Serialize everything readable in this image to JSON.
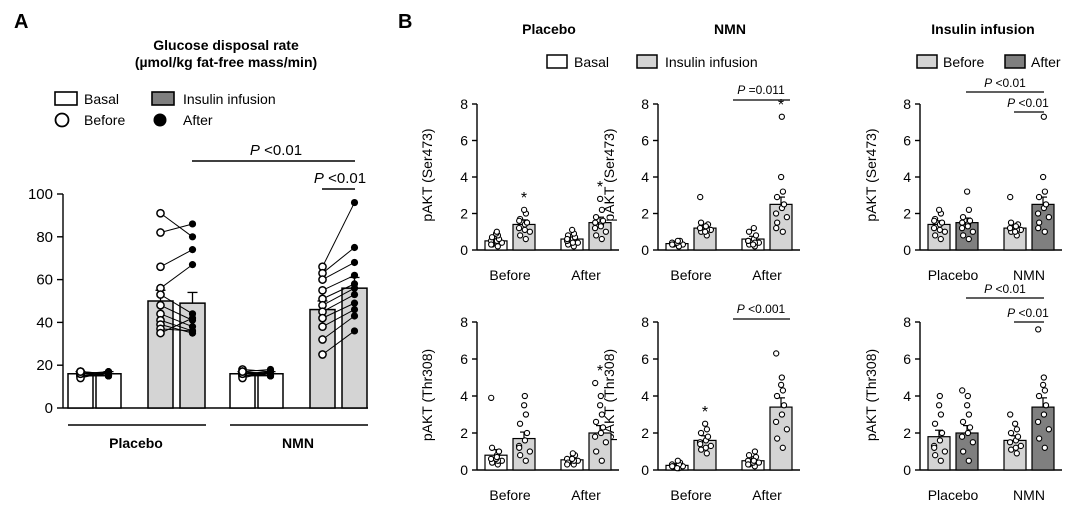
{
  "colors": {
    "white": "#ffffff",
    "light_gray": "#d4d4d4",
    "dark_gray": "#7f7f7f",
    "black": "#000000"
  },
  "chart_data": [
    {
      "id": "A",
      "panel_letter": "A",
      "type": "bar",
      "title": "Glucose disposal rate",
      "title2": "(µmol/kg fat-free mass/min)",
      "legend": {
        "basal": "Basal",
        "insulin": "Insulin infusion",
        "before": "Before",
        "after": "After"
      },
      "ylim": [
        0,
        100
      ],
      "yticks": [
        0,
        20,
        40,
        60,
        80,
        100
      ],
      "groups": [
        {
          "label": "Placebo",
          "bars": [
            {
              "condition": "Basal",
              "time": "Before",
              "mean": 16,
              "sem": 1
            },
            {
              "condition": "Basal",
              "time": "After",
              "mean": 16,
              "sem": 1
            },
            {
              "condition": "Insulin infusion",
              "time": "Before",
              "mean": 50,
              "sem": 5
            },
            {
              "condition": "Insulin infusion",
              "time": "After",
              "mean": 49,
              "sem": 5
            }
          ],
          "basal_before": [
            17,
            16,
            15,
            16,
            15,
            17,
            16,
            15,
            14,
            16,
            17
          ],
          "basal_after": [
            16,
            15,
            16,
            17,
            15,
            16,
            16,
            15,
            17,
            16,
            15
          ],
          "insulin_before": [
            91,
            82,
            66,
            56,
            53,
            48,
            44,
            41,
            39,
            37,
            35
          ],
          "insulin_after": [
            80,
            86,
            74,
            67,
            44,
            41,
            38,
            36,
            35,
            36,
            42
          ]
        },
        {
          "label": "NMN",
          "bars": [
            {
              "condition": "Basal",
              "time": "Before",
              "mean": 16,
              "sem": 1
            },
            {
              "condition": "Basal",
              "time": "After",
              "mean": 16,
              "sem": 1
            },
            {
              "condition": "Insulin infusion",
              "time": "Before",
              "mean": 46,
              "sem": 4
            },
            {
              "condition": "Insulin infusion",
              "time": "After",
              "mean": 56,
              "sem": 5
            }
          ],
          "basal_before": [
            18,
            17,
            16,
            16,
            15,
            17,
            16,
            15,
            14,
            16,
            17
          ],
          "basal_after": [
            17,
            16,
            15,
            17,
            16,
            18,
            16,
            15,
            17,
            16,
            15
          ],
          "insulin_before": [
            66,
            63,
            60,
            55,
            51,
            48,
            45,
            42,
            38,
            32,
            25
          ],
          "insulin_after": [
            96,
            75,
            68,
            62,
            58,
            56,
            53,
            49,
            46,
            43,
            36
          ]
        }
      ],
      "annotations": [
        {
          "label": "P <0.01",
          "span": "Placebo-after vs NMN-after"
        },
        {
          "label": "P <0.01",
          "span": "NMN before vs after"
        }
      ]
    },
    {
      "id": "B",
      "panel_letter": "B",
      "legend_titles": [
        "Placebo",
        "NMN",
        "Insulin infusion"
      ],
      "legend": {
        "basal": "Basal",
        "insulin": "Insulin infusion",
        "before": "Before",
        "after": "After"
      },
      "ylabels": [
        "pAKT (Ser473)",
        "pAKT (Thr308)"
      ],
      "ylim": [
        0,
        8
      ],
      "yticks": [
        0,
        2,
        4,
        6,
        8
      ],
      "subplots": [
        {
          "id": "ser_placebo",
          "type": "bar",
          "categories": [
            "Before",
            "After"
          ],
          "bars": [
            {
              "cat": "Before",
              "condition": "Basal",
              "mean": 0.5,
              "sem": 0.1,
              "points": [
                0.2,
                0.3,
                0.4,
                0.5,
                0.5,
                0.6,
                0.7,
                0.8,
                0.9,
                1.0,
                0.3
              ]
            },
            {
              "cat": "Before",
              "condition": "Insulin infusion",
              "mean": 1.4,
              "sem": 0.25,
              "points": [
                0.6,
                0.8,
                1.0,
                1.2,
                1.4,
                1.5,
                1.7,
                2.0,
                2.2,
                1.1,
                1.6
              ]
            },
            {
              "cat": "After",
              "condition": "Basal",
              "mean": 0.6,
              "sem": 0.1,
              "points": [
                0.2,
                0.3,
                0.4,
                0.5,
                0.6,
                0.7,
                0.8,
                0.9,
                1.1,
                0.4,
                0.6
              ]
            },
            {
              "cat": "After",
              "condition": "Insulin infusion",
              "mean": 1.5,
              "sem": 0.3,
              "points": [
                0.6,
                0.8,
                1.0,
                1.2,
                1.4,
                1.6,
                1.8,
                2.2,
                2.8,
                1.3,
                1.5
              ]
            }
          ],
          "stars": [
            "*",
            "*"
          ],
          "annotations": []
        },
        {
          "id": "ser_nmn",
          "type": "bar",
          "categories": [
            "Before",
            "After"
          ],
          "bars": [
            {
              "cat": "Before",
              "condition": "Basal",
              "mean": 0.35,
              "sem": 0.05,
              "points": [
                0.2,
                0.3,
                0.3,
                0.4,
                0.4,
                0.5,
                0.3,
                0.2,
                0.4,
                0.5,
                0.3
              ]
            },
            {
              "cat": "Before",
              "condition": "Insulin infusion",
              "mean": 1.2,
              "sem": 0.15,
              "points": [
                0.8,
                1.0,
                1.1,
                1.2,
                1.3,
                1.4,
                1.5,
                1.1,
                1.0,
                1.3,
                2.9
              ]
            },
            {
              "cat": "After",
              "condition": "Basal",
              "mean": 0.6,
              "sem": 0.15,
              "points": [
                0.2,
                0.3,
                0.4,
                0.5,
                0.6,
                0.8,
                1.0,
                0.4,
                0.3,
                1.2,
                0.5
              ]
            },
            {
              "cat": "After",
              "condition": "Insulin infusion",
              "mean": 2.5,
              "sem": 0.4,
              "points": [
                1.0,
                1.5,
                1.8,
                2.0,
                2.3,
                2.5,
                2.9,
                3.2,
                4.0,
                7.3,
                1.2
              ]
            }
          ],
          "stars": [
            "",
            "*"
          ],
          "annotations": [
            {
              "label": "P =0.011"
            }
          ]
        },
        {
          "id": "ser_ins",
          "type": "bar",
          "categories": [
            "Placebo",
            "NMN"
          ],
          "bars": [
            {
              "cat": "Placebo",
              "condition": "Before",
              "mean": 1.4,
              "sem": 0.2,
              "points": [
                0.6,
                0.8,
                1.0,
                1.2,
                1.4,
                1.5,
                1.7,
                2.0,
                2.2,
                1.1,
                1.6
              ]
            },
            {
              "cat": "Placebo",
              "condition": "After",
              "mean": 1.5,
              "sem": 0.25,
              "points": [
                0.6,
                0.8,
                1.0,
                1.2,
                1.4,
                1.6,
                1.8,
                2.2,
                3.2,
                1.3,
                1.5
              ]
            },
            {
              "cat": "NMN",
              "condition": "Before",
              "mean": 1.2,
              "sem": 0.15,
              "points": [
                0.8,
                1.0,
                1.1,
                1.2,
                1.3,
                1.4,
                1.5,
                1.1,
                1.0,
                1.3,
                2.9
              ]
            },
            {
              "cat": "NMN",
              "condition": "After",
              "mean": 2.5,
              "sem": 0.4,
              "points": [
                1.0,
                1.5,
                1.8,
                2.0,
                2.3,
                2.5,
                2.9,
                3.2,
                4.0,
                7.3,
                1.2
              ]
            }
          ],
          "stars": [],
          "annotations": [
            {
              "label": "P <0.01"
            },
            {
              "label": "P <0.01"
            }
          ]
        },
        {
          "id": "thr_placebo",
          "type": "bar",
          "categories": [
            "Before",
            "After"
          ],
          "bars": [
            {
              "cat": "Before",
              "condition": "Basal",
              "mean": 0.8,
              "sem": 0.3,
              "points": [
                0.3,
                0.4,
                0.5,
                0.6,
                0.8,
                1.0,
                1.2,
                0.5,
                0.6,
                0.7,
                3.9
              ]
            },
            {
              "cat": "Before",
              "condition": "Insulin infusion",
              "mean": 1.7,
              "sem": 0.35,
              "points": [
                0.5,
                0.8,
                1.0,
                1.3,
                1.6,
                2.0,
                2.5,
                3.0,
                3.5,
                4.0,
                1.2
              ]
            },
            {
              "cat": "After",
              "condition": "Basal",
              "mean": 0.55,
              "sem": 0.1,
              "points": [
                0.3,
                0.4,
                0.5,
                0.6,
                0.7,
                0.8,
                0.4,
                0.5,
                0.6,
                0.9,
                0.3
              ]
            },
            {
              "cat": "After",
              "condition": "Insulin infusion",
              "mean": 2.0,
              "sem": 0.4,
              "points": [
                0.5,
                1.0,
                1.5,
                1.8,
                2.0,
                2.3,
                2.6,
                3.0,
                3.5,
                4.0,
                4.7
              ]
            }
          ],
          "stars": [
            "",
            "*"
          ],
          "annotations": []
        },
        {
          "id": "thr_nmn",
          "type": "bar",
          "categories": [
            "Before",
            "After"
          ],
          "bars": [
            {
              "cat": "Before",
              "condition": "Basal",
              "mean": 0.25,
              "sem": 0.05,
              "points": [
                0.1,
                0.2,
                0.2,
                0.3,
                0.3,
                0.4,
                0.2,
                0.3,
                0.1,
                0.5,
                0.2
              ]
            },
            {
              "cat": "Before",
              "condition": "Insulin infusion",
              "mean": 1.6,
              "sem": 0.25,
              "points": [
                0.9,
                1.1,
                1.3,
                1.5,
                1.6,
                1.8,
                2.0,
                2.2,
                2.5,
                1.2,
                1.4
              ]
            },
            {
              "cat": "After",
              "condition": "Basal",
              "mean": 0.5,
              "sem": 0.1,
              "points": [
                0.2,
                0.3,
                0.4,
                0.5,
                0.6,
                0.7,
                0.8,
                1.0,
                0.4,
                0.5,
                0.3
              ]
            },
            {
              "cat": "After",
              "condition": "Insulin infusion",
              "mean": 3.4,
              "sem": 0.5,
              "points": [
                1.2,
                1.7,
                2.2,
                2.6,
                3.0,
                3.5,
                4.0,
                4.3,
                4.6,
                5.0,
                6.3
              ]
            }
          ],
          "stars": [
            "*",
            ""
          ],
          "annotations": [
            {
              "label": "P <0.001"
            }
          ]
        },
        {
          "id": "thr_ins",
          "type": "bar",
          "categories": [
            "Placebo",
            "NMN"
          ],
          "bars": [
            {
              "cat": "Placebo",
              "condition": "Before",
              "mean": 1.8,
              "sem": 0.35,
              "points": [
                0.5,
                0.8,
                1.0,
                1.3,
                1.6,
                2.0,
                2.5,
                3.0,
                3.5,
                4.0,
                1.2
              ]
            },
            {
              "cat": "Placebo",
              "condition": "After",
              "mean": 2.0,
              "sem": 0.4,
              "points": [
                0.5,
                1.0,
                1.5,
                1.8,
                2.0,
                2.3,
                2.6,
                3.0,
                3.5,
                4.0,
                4.3
              ]
            },
            {
              "cat": "NMN",
              "condition": "Before",
              "mean": 1.6,
              "sem": 0.25,
              "points": [
                0.9,
                1.1,
                1.3,
                1.5,
                1.6,
                1.8,
                2.0,
                2.2,
                2.5,
                1.2,
                3.0
              ]
            },
            {
              "cat": "NMN",
              "condition": "After",
              "mean": 3.4,
              "sem": 0.5,
              "points": [
                1.2,
                1.7,
                2.2,
                2.6,
                3.0,
                3.5,
                4.0,
                4.3,
                4.6,
                5.0,
                7.6
              ]
            }
          ],
          "stars": [],
          "annotations": [
            {
              "label": "P <0.01"
            },
            {
              "label": "P <0.01"
            }
          ]
        }
      ]
    }
  ]
}
